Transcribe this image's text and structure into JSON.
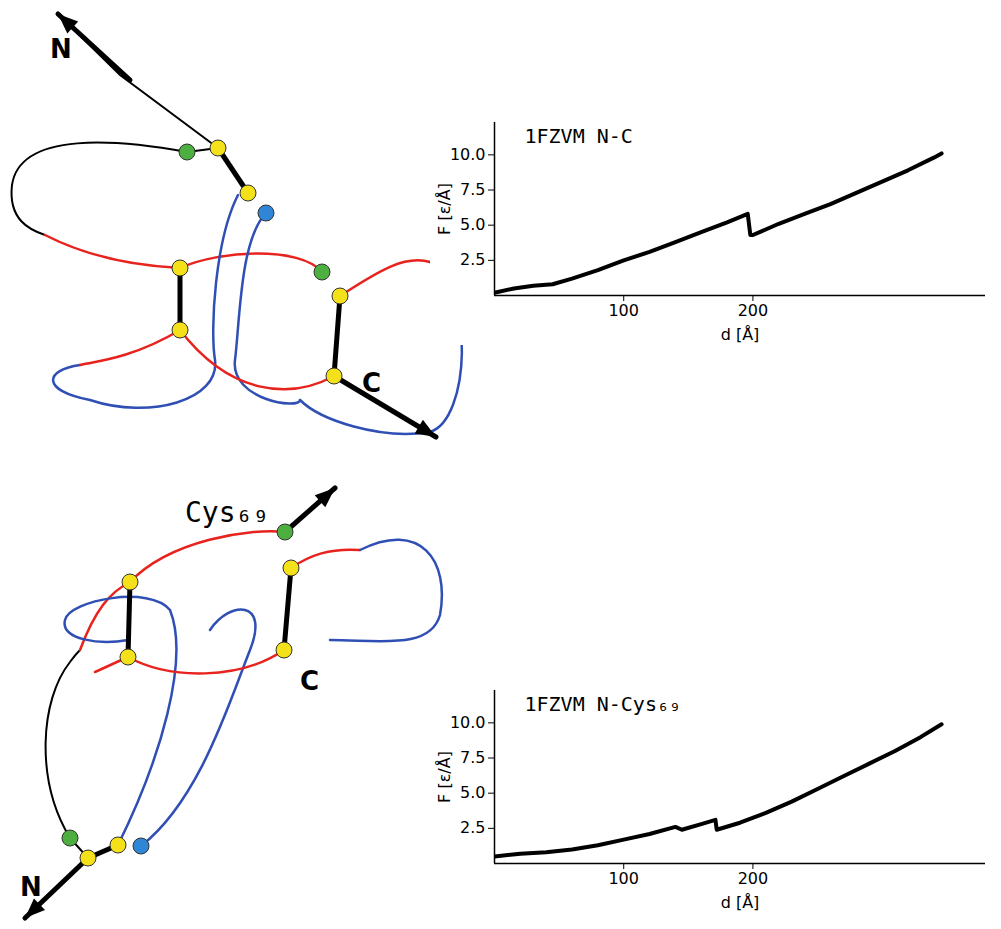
{
  "chart_data": [
    {
      "type": "line",
      "title": "1FZVM N-C",
      "x_label": "d [Å]",
      "y_label": "F [ε/Å]",
      "color": "#000000",
      "x": [
        0,
        15,
        30,
        45,
        60,
        80,
        100,
        120,
        140,
        160,
        180,
        196,
        198,
        200,
        220,
        240,
        260,
        280,
        300,
        320,
        340,
        346
      ],
      "values": [
        0.2,
        0.5,
        0.7,
        0.8,
        1.2,
        1.8,
        2.5,
        3.1,
        3.8,
        4.5,
        5.2,
        5.8,
        4.3,
        4.3,
        5.1,
        5.8,
        6.5,
        7.3,
        8.1,
        8.9,
        9.8,
        10.1
      ],
      "xlim": [
        0,
        380
      ],
      "ylim": [
        0,
        12.3
      ],
      "xticks": [
        100,
        200
      ],
      "yticks": [
        2.5,
        {
          "value": 5,
          "label": "5.0"
        },
        7.5,
        {
          "value": 10,
          "label": "10.0"
        }
      ]
    },
    {
      "type": "line",
      "title": "1FZVM N-Cys₆₉",
      "x_label": "d [Å]",
      "y_label": "F [ε/Å]",
      "color": "#000000",
      "x": [
        0,
        20,
        40,
        60,
        80,
        100,
        120,
        140,
        145,
        160,
        171,
        172,
        190,
        210,
        230,
        250,
        270,
        290,
        310,
        330,
        346
      ],
      "values": [
        0.5,
        0.7,
        0.8,
        1.0,
        1.3,
        1.7,
        2.1,
        2.6,
        2.4,
        2.8,
        3.1,
        2.4,
        2.9,
        3.6,
        4.4,
        5.3,
        6.2,
        7.1,
        8.0,
        9.0,
        9.9
      ],
      "xlim": [
        0,
        380
      ],
      "ylim": [
        0,
        12.3
      ],
      "xticks": [
        100,
        200
      ],
      "yticks": [
        2.5,
        {
          "value": 5,
          "label": "5.0"
        },
        7.5,
        {
          "value": 10,
          "label": "10.0"
        }
      ]
    }
  ],
  "diagrams": [
    {
      "labels": {
        "n_terminus": "N",
        "c_terminus": "C"
      }
    },
    {
      "labels": {
        "n_terminus": "N",
        "pulled_residue": "Cys₆₉",
        "c_terminus": "C"
      }
    }
  ]
}
